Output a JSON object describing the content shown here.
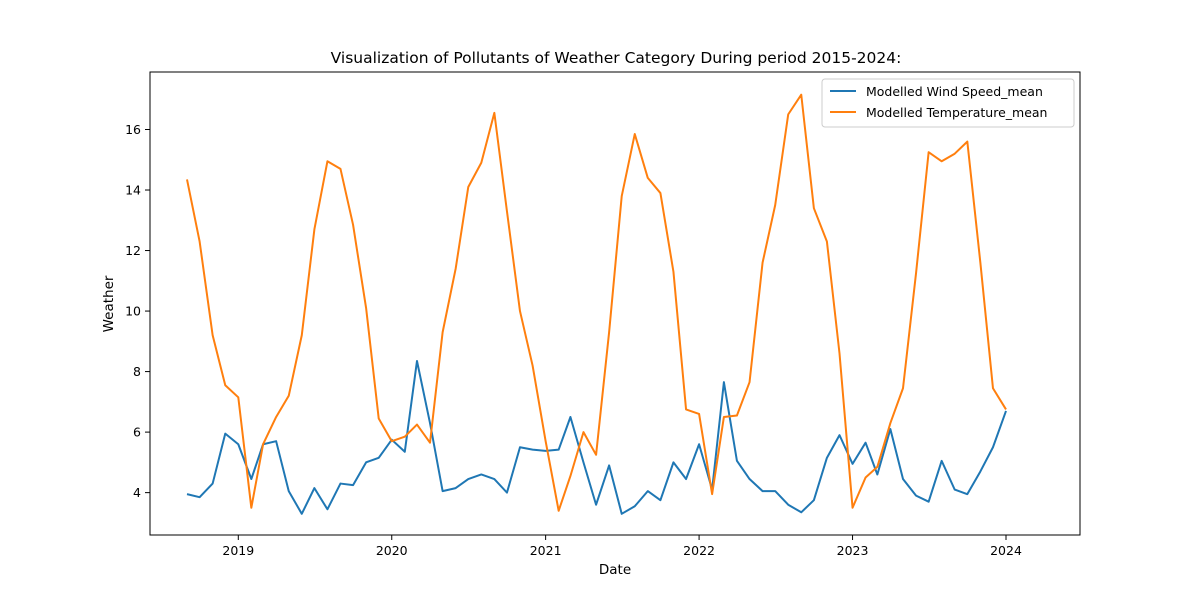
{
  "chart_data": {
    "type": "line",
    "title": "Visualization of Pollutants of Weather Category During period 2015-2024:",
    "xlabel": "Date",
    "ylabel": "Weather",
    "x_tick_labels": [
      "2019",
      "2020",
      "2021",
      "2022",
      "2023",
      "2024"
    ],
    "y_ticks": [
      4,
      6,
      8,
      10,
      12,
      14,
      16
    ],
    "xlim": [
      "2018-06-05",
      "2024-06-25"
    ],
    "ylim": [
      2.6,
      17.9
    ],
    "legend_position": "top-right",
    "grid": false,
    "x": [
      "2018-09-01",
      "2018-10-01",
      "2018-11-01",
      "2018-12-01",
      "2019-01-01",
      "2019-02-01",
      "2019-03-01",
      "2019-04-01",
      "2019-05-01",
      "2019-06-01",
      "2019-07-01",
      "2019-08-01",
      "2019-09-01",
      "2019-10-01",
      "2019-11-01",
      "2019-12-01",
      "2020-01-01",
      "2020-02-01",
      "2020-03-01",
      "2020-04-01",
      "2020-05-01",
      "2020-06-01",
      "2020-07-01",
      "2020-08-01",
      "2020-09-01",
      "2020-10-01",
      "2020-11-01",
      "2020-12-01",
      "2021-01-01",
      "2021-02-01",
      "2021-03-01",
      "2021-04-01",
      "2021-05-01",
      "2021-06-01",
      "2021-07-01",
      "2021-08-01",
      "2021-09-01",
      "2021-10-01",
      "2021-11-01",
      "2021-12-01",
      "2022-01-01",
      "2022-02-01",
      "2022-03-01",
      "2022-04-01",
      "2022-05-01",
      "2022-06-01",
      "2022-07-01",
      "2022-08-01",
      "2022-09-01",
      "2022-10-01",
      "2022-11-01",
      "2022-12-01",
      "2023-01-01",
      "2023-02-01",
      "2023-03-01",
      "2023-04-01",
      "2023-05-01",
      "2023-06-01",
      "2023-07-01",
      "2023-08-01",
      "2023-09-01",
      "2023-10-01",
      "2023-11-01",
      "2023-12-01",
      "2024-01-01"
    ],
    "series": [
      {
        "name": "Modelled Wind Speed_mean",
        "color": "#1f77b4",
        "values": [
          3.95,
          3.85,
          4.3,
          5.95,
          5.6,
          4.45,
          5.6,
          5.7,
          4.05,
          3.3,
          4.15,
          3.45,
          4.3,
          4.25,
          5.0,
          5.15,
          5.75,
          5.35,
          8.35,
          6.3,
          4.05,
          4.15,
          4.45,
          4.6,
          4.45,
          4.0,
          5.5,
          5.42,
          5.38,
          5.42,
          6.5,
          5.0,
          3.6,
          4.9,
          3.3,
          3.55,
          4.05,
          3.75,
          5.0,
          4.45,
          5.6,
          4.1,
          7.65,
          5.05,
          4.45,
          4.05,
          4.05,
          3.6,
          3.35,
          3.75,
          5.15,
          5.9,
          4.95,
          5.65,
          4.6,
          6.1,
          4.45,
          3.9,
          3.7,
          5.05,
          4.1,
          3.95,
          4.7,
          5.5,
          6.7
        ]
      },
      {
        "name": "Modelled Temperature_mean",
        "color": "#ff7f0e",
        "values": [
          14.35,
          12.3,
          9.2,
          7.55,
          7.15,
          3.5,
          5.6,
          6.5,
          7.2,
          9.2,
          12.7,
          14.95,
          14.7,
          12.85,
          10.1,
          6.45,
          5.7,
          5.85,
          6.25,
          5.65,
          9.3,
          11.4,
          14.1,
          14.9,
          16.55,
          13.3,
          10.0,
          8.2,
          5.7,
          3.4,
          4.55,
          6.0,
          5.25,
          9.3,
          13.8,
          15.85,
          14.4,
          13.9,
          11.3,
          6.75,
          6.6,
          3.95,
          6.5,
          6.55,
          7.65,
          11.6,
          13.5,
          16.5,
          17.15,
          13.4,
          12.3,
          8.6,
          3.5,
          4.5,
          4.85,
          6.3,
          7.45,
          11.25,
          15.25,
          14.95,
          15.2,
          15.6,
          11.6,
          7.45,
          6.75
        ]
      }
    ]
  }
}
